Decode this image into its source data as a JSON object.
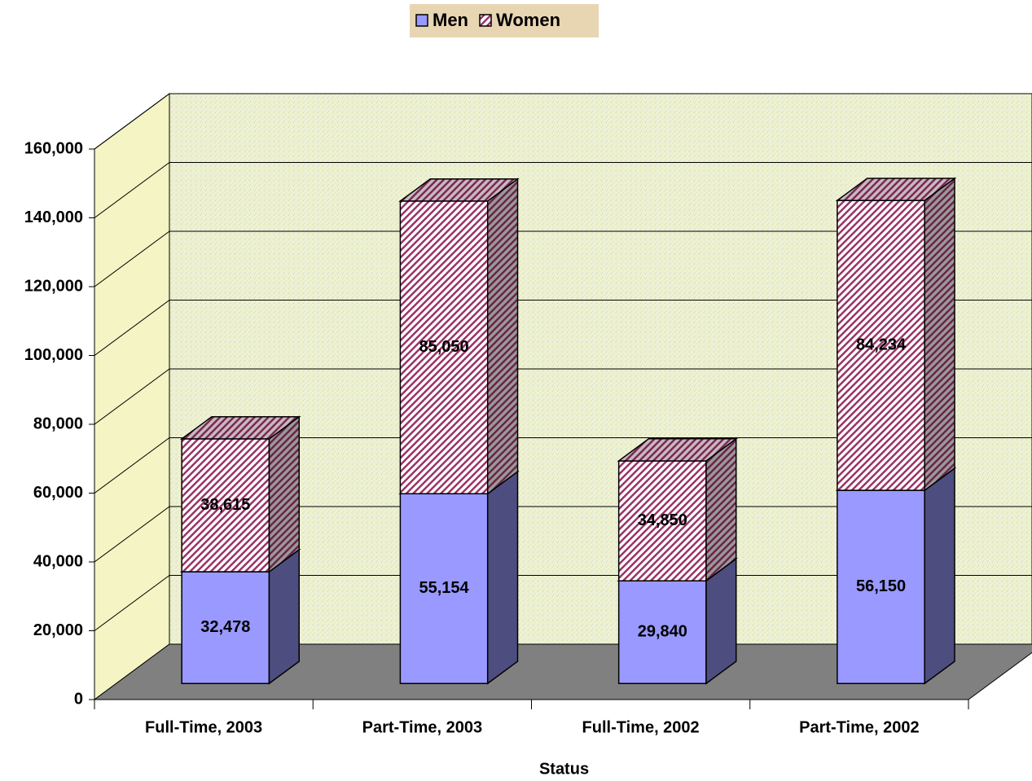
{
  "chart_data": {
    "type": "bar",
    "stacked": true,
    "x_label": "Status",
    "categories": [
      "Full-Time, 2003",
      "Part-Time, 2003",
      "Full-Time, 2002",
      "Part-Time, 2002"
    ],
    "series": [
      {
        "name": "Men",
        "color": "#9999ff",
        "values": [
          32478,
          55154,
          29840,
          56150
        ],
        "value_labels": [
          "32,478",
          "55,154",
          "29,840",
          "56,150"
        ]
      },
      {
        "name": "Women",
        "color": "#993366",
        "values": [
          38615,
          85050,
          34850,
          84234
        ],
        "value_labels": [
          "38,615",
          "85,050",
          "34,850",
          "84,234"
        ]
      }
    ],
    "ylim": [
      0,
      160000
    ],
    "yticks": [
      0,
      {
        "value": 20000,
        "label": "20,000"
      },
      {
        "value": 40000,
        "label": "40,000"
      },
      {
        "value": 60000,
        "label": "60,000"
      },
      {
        "value": 80000,
        "label": "80,000"
      },
      {
        "value": 100000,
        "label": "100,000"
      },
      {
        "value": 120000,
        "label": "120,000"
      },
      {
        "value": 140000,
        "label": "140,000"
      },
      {
        "value": 160000,
        "label": "160,000"
      }
    ],
    "grid": true,
    "legend": "top"
  }
}
